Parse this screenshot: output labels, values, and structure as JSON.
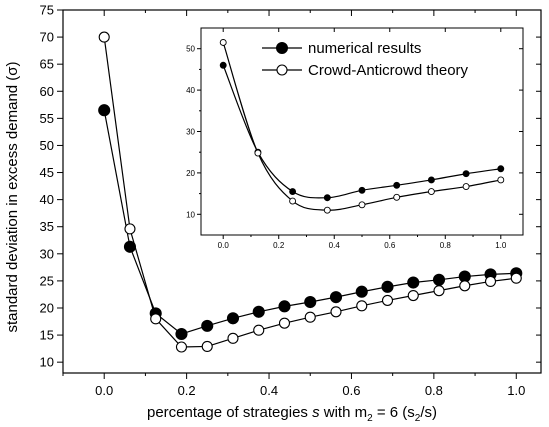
{
  "chart_data": [
    {
      "type": "line",
      "xlabel_parts": {
        "pre": "percentage of strategies ",
        "italic": "s",
        "mid": " with m",
        "sub": "2",
        "post": " = 6  (s",
        "sub2": "2",
        "end": "/s)"
      },
      "ylabel": "standard deviation in excess demand (σ)",
      "xlim": [
        -0.1,
        1.06
      ],
      "ylim": [
        8,
        75
      ],
      "xticks": [
        0.0,
        0.2,
        0.4,
        0.6,
        0.8,
        1.0
      ],
      "xtick_labels": [
        "0.0",
        "0.2",
        "0.4",
        "0.6",
        "0.8",
        "1.0"
      ],
      "yticks": [
        10,
        15,
        20,
        25,
        30,
        35,
        40,
        45,
        50,
        55,
        60,
        65,
        70,
        75
      ],
      "ytick_labels": [
        "10",
        "15",
        "20",
        "25",
        "30",
        "35",
        "40",
        "45",
        "50",
        "55",
        "60",
        "65",
        "70",
        "75"
      ],
      "series": [
        {
          "name": "numerical results",
          "marker": "filled-circle",
          "x": [
            0.0,
            0.0625,
            0.125,
            0.1875,
            0.25,
            0.3125,
            0.375,
            0.4375,
            0.5,
            0.5625,
            0.625,
            0.6875,
            0.75,
            0.8125,
            0.875,
            0.9375,
            1.0
          ],
          "y": [
            56.5,
            31.3,
            19.0,
            15.2,
            16.7,
            18.1,
            19.3,
            20.3,
            21.1,
            22.0,
            23.0,
            23.9,
            24.7,
            25.2,
            25.8,
            26.2,
            26.4
          ]
        },
        {
          "name": "Crowd-Anticrowd theory",
          "marker": "open-circle",
          "x": [
            0.0,
            0.0625,
            0.125,
            0.1875,
            0.25,
            0.3125,
            0.375,
            0.4375,
            0.5,
            0.5625,
            0.625,
            0.6875,
            0.75,
            0.8125,
            0.875,
            0.9375,
            1.0
          ],
          "y": [
            70.0,
            34.6,
            18.0,
            12.8,
            12.9,
            14.4,
            15.9,
            17.2,
            18.3,
            19.3,
            20.4,
            21.4,
            22.3,
            23.2,
            24.1,
            24.9,
            25.5
          ]
        }
      ]
    },
    {
      "type": "line",
      "role": "inset",
      "xlim": [
        -0.08,
        1.08
      ],
      "ylim": [
        5,
        55
      ],
      "xticks": [
        0.0,
        0.2,
        0.4,
        0.6,
        0.8,
        1.0
      ],
      "xtick_labels": [
        "0.0",
        "0.2",
        "0.4",
        "0.6",
        "0.8",
        "1.0"
      ],
      "yticks": [
        10,
        20,
        30,
        40,
        50
      ],
      "ytick_labels": [
        "10",
        "20",
        "30",
        "40",
        "50"
      ],
      "series": [
        {
          "name": "numerical results",
          "marker": "filled-circle",
          "x": [
            0.0,
            0.125,
            0.25,
            0.375,
            0.5,
            0.625,
            0.75,
            0.875,
            1.0
          ],
          "y": [
            46.0,
            25.0,
            15.5,
            14.0,
            15.8,
            17.0,
            18.3,
            19.8,
            21.0
          ]
        },
        {
          "name": "Crowd-Anticrowd theory",
          "marker": "open-circle",
          "x": [
            0.0,
            0.125,
            0.25,
            0.375,
            0.5,
            0.625,
            0.75,
            0.875,
            1.0
          ],
          "y": [
            51.5,
            24.8,
            13.2,
            11.0,
            12.3,
            14.1,
            15.5,
            16.7,
            18.3
          ]
        }
      ],
      "legend": [
        "numerical results",
        "Crowd-Anticrowd theory"
      ]
    }
  ]
}
